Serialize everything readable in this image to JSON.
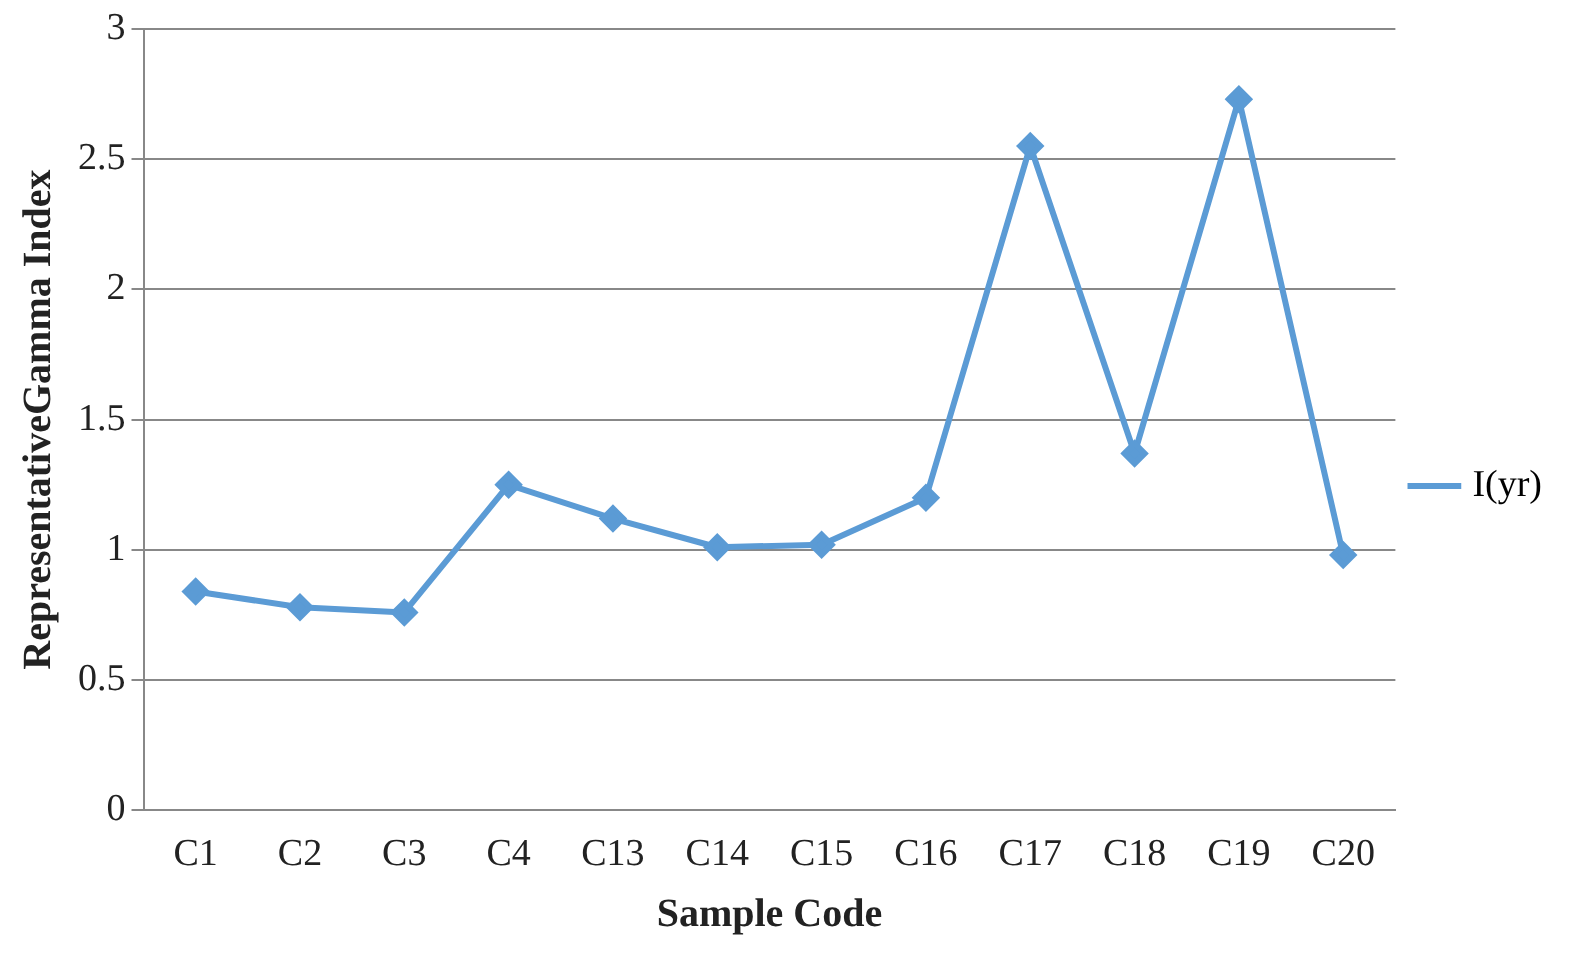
{
  "chart_data": {
    "type": "line",
    "xlabel": "Sample Code",
    "ylabel": "RepresentativeGamma Index",
    "categories": [
      "C1",
      "C2",
      "C3",
      "C4",
      "C13",
      "C14",
      "C15",
      "C16",
      "C17",
      "C18",
      "C19",
      "C20"
    ],
    "series": [
      {
        "name": "I(yr)",
        "color": "#5b9bd5",
        "values": [
          0.84,
          0.78,
          0.76,
          1.25,
          1.12,
          1.01,
          1.02,
          1.2,
          2.55,
          1.37,
          2.73,
          0.98
        ]
      }
    ],
    "ylim": [
      0,
      3
    ],
    "yticks": [
      0,
      0.5,
      1,
      1.5,
      2,
      2.5,
      3
    ],
    "grid": "y",
    "legend": "right",
    "marker": "diamond",
    "line_style": "solid"
  }
}
